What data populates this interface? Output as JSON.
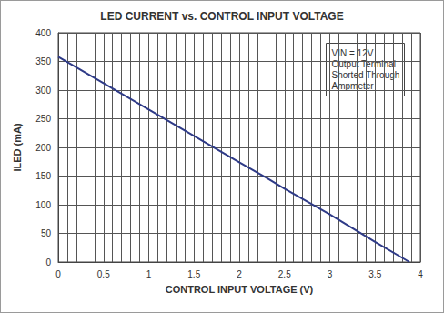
{
  "chart_data": {
    "type": "line",
    "title": "LED CURRENT vs. CONTROL INPUT VOLTAGE",
    "xlabel": "CONTROL INPUT VOLTAGE (V)",
    "ylabel": "ILED (mA)",
    "annotation": [
      "VIN = 12V",
      "Output Terminal",
      "Shorted Through",
      "Ampmeter"
    ],
    "x": [
      0,
      0.5,
      1,
      1.5,
      2,
      2.3,
      2.5,
      3,
      3.5,
      3.88
    ],
    "values": [
      358,
      312,
      266,
      220,
      174,
      147,
      128,
      83,
      35,
      0
    ],
    "color": "#2e3a87",
    "xlim": [
      0,
      4
    ],
    "xticks": [
      0,
      0.5,
      1,
      1.5,
      2,
      2.5,
      3,
      3.5,
      4
    ],
    "ylim": [
      0,
      400
    ],
    "yticks": [
      0,
      50,
      100,
      150,
      200,
      250,
      300,
      350,
      400
    ],
    "grid": true
  }
}
